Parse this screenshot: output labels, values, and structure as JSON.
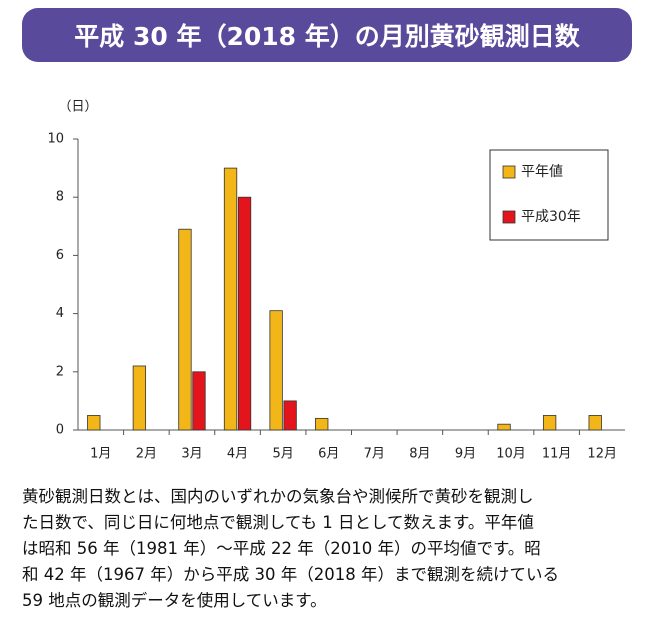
{
  "header": {
    "title": "平成 30 年（2018 年）の月別黄砂観測日数"
  },
  "chart_data": {
    "type": "bar",
    "y_label": "（日）",
    "categories": [
      "1月",
      "2月",
      "3月",
      "4月",
      "5月",
      "6月",
      "7月",
      "8月",
      "9月",
      "10月",
      "11月",
      "12月"
    ],
    "series": [
      {
        "name": "平年値",
        "color": "#f2b619",
        "values": [
          0.5,
          2.2,
          6.9,
          9.0,
          4.1,
          0.4,
          0,
          0,
          0,
          0.2,
          0.5,
          0.5
        ]
      },
      {
        "name": "平成30年",
        "color": "#e3141c",
        "values": [
          0,
          0,
          2,
          8,
          1,
          0,
          0,
          0,
          0,
          0,
          0,
          0
        ]
      }
    ],
    "ylim": [
      0,
      10
    ],
    "yticks": [
      0,
      2,
      4,
      6,
      8,
      10
    ],
    "legend": "upper right"
  },
  "description": {
    "lines": [
      "黄砂観測日数とは、国内のいずれかの気象台や測候所で黄砂を観測し",
      "た日数で、同じ日に何地点で観測しても 1 日として数えます。平年値",
      "は昭和 56 年（1981 年）～平成 22 年（2010 年）の平均値です。昭",
      "和 42 年（1967 年）から平成 30 年（2018 年）まで観測を続けている",
      "59 地点の観測データを使用しています。"
    ]
  }
}
